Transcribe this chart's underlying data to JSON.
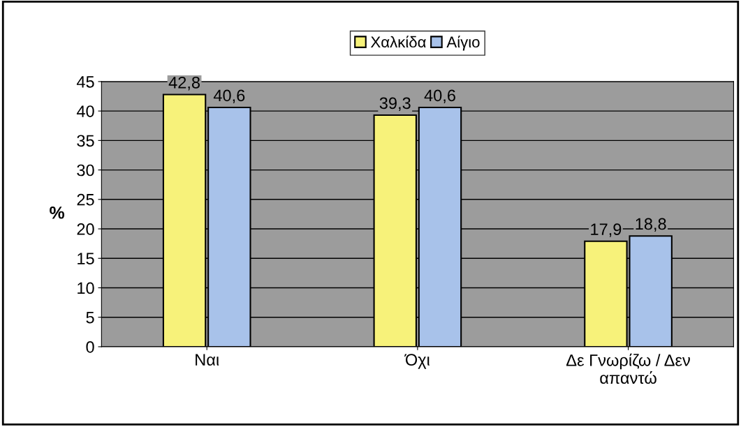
{
  "chart_data": {
    "type": "bar",
    "ylabel": "%",
    "categories": [
      "Ναι",
      "Όχι",
      "Δε Γνωρίζω / Δεν απαντώ"
    ],
    "series": [
      {
        "name": "Χαλκίδα",
        "color": "#f7f27a",
        "values": [
          42.8,
          39.3,
          17.9
        ],
        "value_labels": [
          "42,8",
          "39,3",
          "17,9"
        ]
      },
      {
        "name": "Αίγιο",
        "color": "#a8c2ea",
        "values": [
          40.6,
          40.6,
          18.8
        ],
        "value_labels": [
          "40,6",
          "40,6",
          "18,8"
        ]
      }
    ],
    "ylim": [
      0,
      45
    ],
    "yticks": [
      0,
      5,
      10,
      15,
      20,
      25,
      30,
      35,
      40,
      45
    ],
    "grid": "y",
    "legend": "top"
  }
}
